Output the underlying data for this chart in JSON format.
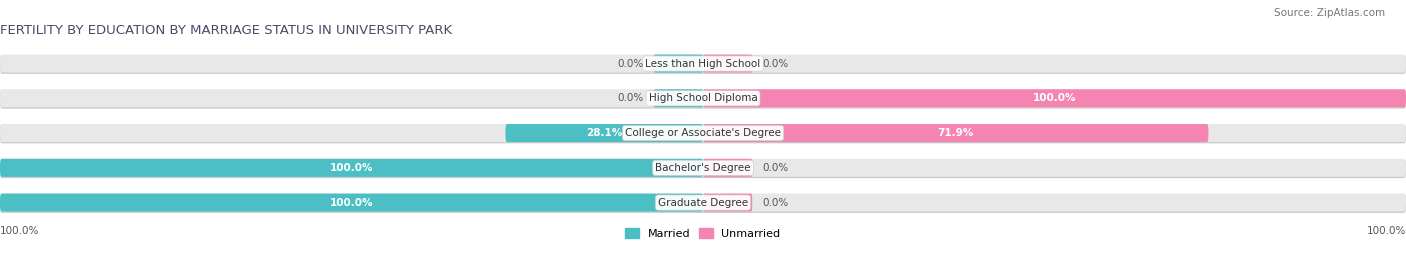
{
  "title": "FERTILITY BY EDUCATION BY MARRIAGE STATUS IN UNIVERSITY PARK",
  "source": "Source: ZipAtlas.com",
  "categories": [
    "Less than High School",
    "High School Diploma",
    "College or Associate's Degree",
    "Bachelor's Degree",
    "Graduate Degree"
  ],
  "married_values": [
    0.0,
    0.0,
    28.1,
    100.0,
    100.0
  ],
  "unmarried_values": [
    0.0,
    100.0,
    71.9,
    0.0,
    0.0
  ],
  "married_color": "#4BBFC3",
  "unmarried_color": "#F484B2",
  "bar_bg_color": "#E8E8E8",
  "bar_shadow_color": "#C8C8C8",
  "figsize": [
    14.06,
    2.69
  ],
  "dpi": 100,
  "title_fontsize": 9.5,
  "source_fontsize": 7.5,
  "label_fontsize": 7.5,
  "category_fontsize": 7.5,
  "legend_fontsize": 8,
  "background_color": "#FFFFFF",
  "title_color": "#4A4A6A",
  "label_color_dark": "#555555",
  "label_color_white": "#FFFFFF"
}
